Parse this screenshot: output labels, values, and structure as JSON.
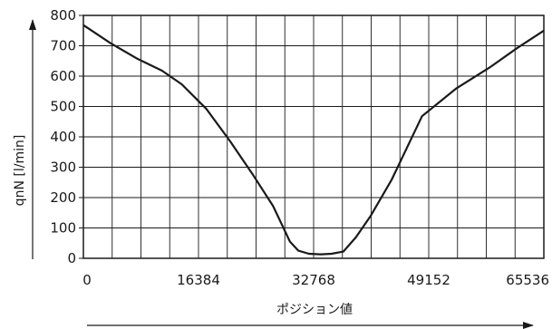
{
  "chart_data": {
    "type": "line",
    "title": "",
    "xlabel": "ポジション値",
    "ylabel": "qnN [l/min]",
    "xlim": [
      0,
      65536
    ],
    "ylim": [
      0,
      800
    ],
    "x_ticks": [
      0,
      16384,
      32768,
      49152,
      65536
    ],
    "x_tick_labels": [
      "0",
      "16384",
      "32768",
      "49152",
      "65536"
    ],
    "y_ticks": [
      0,
      100,
      200,
      300,
      400,
      500,
      600,
      700,
      800
    ],
    "y_tick_labels": [
      "0",
      "100",
      "200",
      "300",
      "400",
      "500",
      "600",
      "700",
      "800"
    ],
    "grid": true,
    "x_grid_divisions": 16,
    "series": [
      {
        "color": "#1a1a1a",
        "x": [
          0,
          3900,
          7700,
          11200,
          14000,
          17500,
          20900,
          24000,
          27000,
          29400,
          30600,
          32100,
          33800,
          35300,
          37000,
          38800,
          40900,
          43900,
          48200,
          53100,
          57800,
          61700,
          65536
        ],
        "y": [
          768,
          708,
          657,
          618,
          573,
          492,
          385,
          280,
          172,
          55,
          25,
          15,
          13,
          15,
          22,
          70,
          140,
          260,
          468,
          560,
          628,
          692,
          750
        ]
      }
    ]
  }
}
